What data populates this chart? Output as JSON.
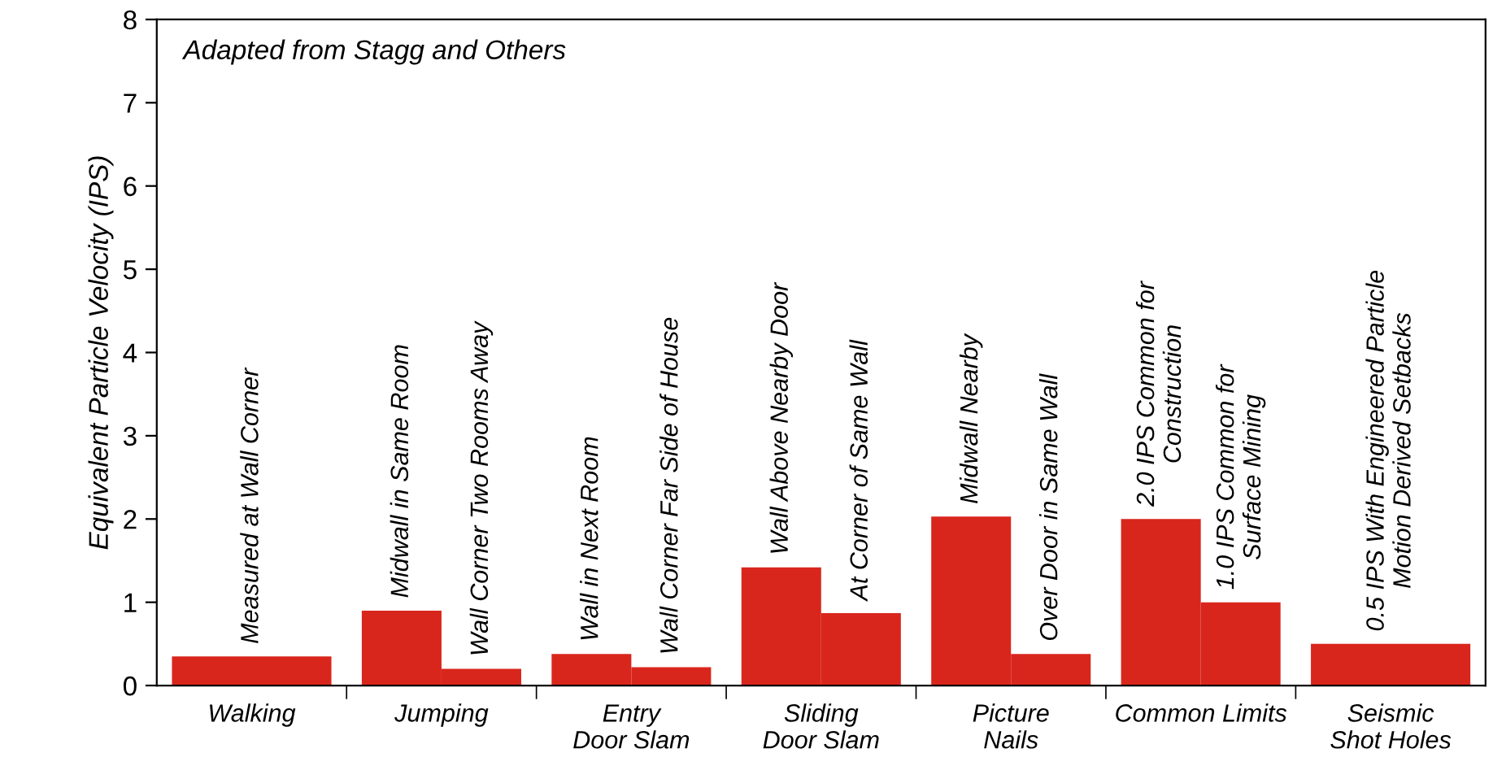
{
  "chart_data": {
    "type": "bar",
    "ylabel": "Equivalent Particle Velocity (IPS)",
    "annotations": [
      "Adapted from Stagg and Others"
    ],
    "categories": [
      "Walking",
      "Jumping",
      "Entry\nDoor Slam",
      "Sliding\nDoor Slam",
      "Picture\nNails",
      "Common Limits",
      "Seismic\nShot Holes"
    ],
    "series": [
      {
        "color": "#d9261c",
        "values": [
          0.35,
          0.9,
          0.38,
          1.42,
          2.03,
          2.0,
          0.5
        ],
        "value_labels": [
          "Measured at Wall Corner",
          "Midwall in Same Room",
          "Wall in Next Room",
          "Wall Above Nearby Door",
          "Midwall Nearby",
          "2.0 IPS Common for\nConstruction",
          "0.5 IPS With Engineered Particle\nMotion Derived Setbacks"
        ]
      },
      {
        "color": "#d9261c",
        "values": [
          null,
          0.2,
          0.22,
          0.87,
          0.38,
          1.0,
          null
        ],
        "value_labels": [
          null,
          "Wall Corner Two Rooms Away",
          "Wall Corner Far Side of House",
          "At Corner of Same Wall",
          "Over Door in Same Wall",
          "1.0 IPS Common for\nSurface Mining",
          null
        ]
      }
    ],
    "ylim": [
      0,
      8
    ],
    "yticks": [
      0,
      1,
      2,
      3,
      4,
      5,
      6,
      7,
      8
    ],
    "grid": false
  }
}
